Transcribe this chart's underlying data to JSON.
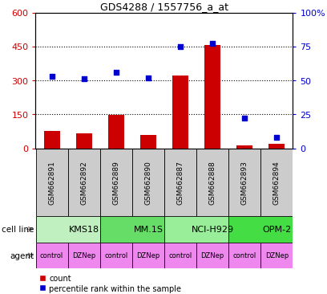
{
  "title": "GDS4288 / 1557756_a_at",
  "samples": [
    "GSM662891",
    "GSM662892",
    "GSM662889",
    "GSM662890",
    "GSM662887",
    "GSM662888",
    "GSM662893",
    "GSM662894"
  ],
  "counts": [
    75,
    65,
    148,
    60,
    320,
    455,
    12,
    18
  ],
  "percentile_ranks": [
    53,
    51,
    56,
    52,
    75,
    77,
    22,
    8
  ],
  "cell_lines": [
    {
      "label": "KMS18",
      "start": 0,
      "end": 2,
      "color": "#c0f0c0"
    },
    {
      "label": "MM.1S",
      "start": 2,
      "end": 4,
      "color": "#66dd66"
    },
    {
      "label": "NCI-H929",
      "start": 4,
      "end": 6,
      "color": "#99ee99"
    },
    {
      "label": "OPM-2",
      "start": 6,
      "end": 8,
      "color": "#44dd44"
    }
  ],
  "agents": [
    "control",
    "DZNep",
    "control",
    "DZNep",
    "control",
    "DZNep",
    "control",
    "DZNep"
  ],
  "ylim_left": [
    0,
    600
  ],
  "yticks_left": [
    0,
    150,
    300,
    450,
    600
  ],
  "ylim_right": [
    0,
    100
  ],
  "yticks_right": [
    0,
    25,
    50,
    75,
    100
  ],
  "bar_color": "#cc0000",
  "dot_color": "#0000cc",
  "agent_color": "#ee88ee",
  "sample_bg_color": "#cccccc",
  "bar_width": 0.5,
  "dot_size": 25,
  "grid_color": "black",
  "legend_labels": [
    "count",
    "percentile rank within the sample"
  ]
}
